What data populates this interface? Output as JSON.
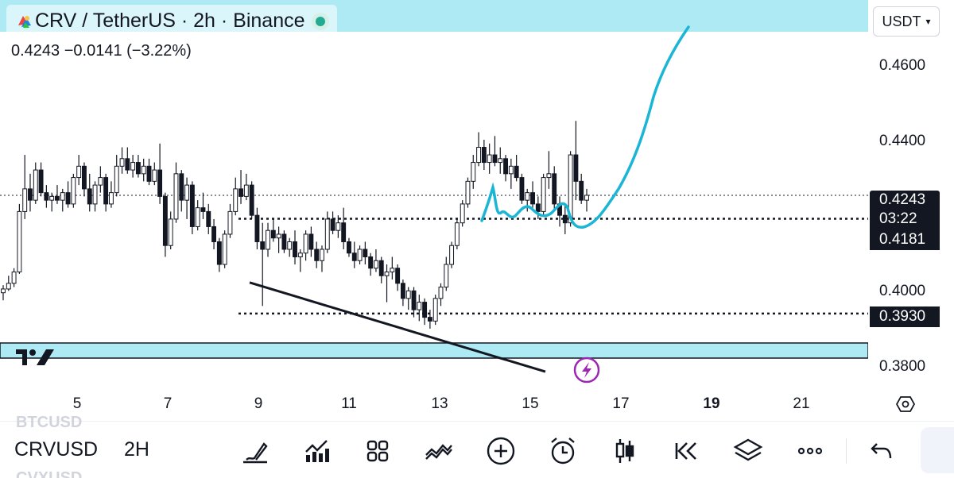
{
  "header": {
    "title": "CRV / TetherUS · 2h · Binance",
    "ohlc": "0.4243  −0.0141 (−3.22%)"
  },
  "currency": {
    "selected": "USDT"
  },
  "price_axis": {
    "ticks": [
      "0.4600",
      "0.4400",
      "0.4000",
      "0.3800"
    ],
    "last_price": "0.4243",
    "countdown": "03:22",
    "level_1": "0.4181",
    "level_2": "0.3930"
  },
  "time_axis": {
    "labels": [
      "5",
      "7",
      "9",
      "11",
      "13",
      "15",
      "17",
      "19",
      "21"
    ]
  },
  "bottom": {
    "ghost_above": "BTCUSD",
    "symbol": "CRVUSD",
    "ghost_below": "CVXUSD",
    "timeframe": "2H"
  },
  "icons": [
    "tradingview-logo-icon",
    "draw-brush-icon",
    "indicators-icon",
    "grid-layout-icon",
    "compare-icon",
    "add-icon",
    "alarm-icon",
    "candles-icon",
    "replay-icon",
    "layers-icon",
    "more-icon",
    "undo-icon",
    "settings-hex-icon",
    "lightning-icon"
  ],
  "colors": {
    "accent": "#aeeaf4",
    "cyan_path": "#1bb5d6",
    "up": "#131722",
    "purple": "#9c27b0"
  },
  "chart_data": {
    "type": "candlestick",
    "title": "CRV / TetherUS · 2h · Binance",
    "ylim": [
      0.373,
      0.476
    ],
    "price_levels": [
      0.4243,
      0.4181,
      0.393
    ],
    "support_zone": [
      0.3812,
      0.3852
    ],
    "x_labels": [
      "5",
      "7",
      "9",
      "11",
      "13",
      "15",
      "17",
      "19",
      "21"
    ],
    "candles": [
      [
        0.3985,
        0.4005,
        0.3965,
        0.3995
      ],
      [
        0.3995,
        0.403,
        0.399,
        0.401
      ],
      [
        0.401,
        0.405,
        0.4,
        0.404
      ],
      [
        0.404,
        0.422,
        0.4035,
        0.42
      ],
      [
        0.42,
        0.435,
        0.418,
        0.426
      ],
      [
        0.426,
        0.43,
        0.42,
        0.423
      ],
      [
        0.423,
        0.433,
        0.422,
        0.431
      ],
      [
        0.431,
        0.433,
        0.424,
        0.425
      ],
      [
        0.425,
        0.427,
        0.421,
        0.423
      ],
      [
        0.423,
        0.425,
        0.42,
        0.424
      ],
      [
        0.424,
        0.427,
        0.422,
        0.423
      ],
      [
        0.423,
        0.426,
        0.42,
        0.425
      ],
      [
        0.425,
        0.428,
        0.421,
        0.422
      ],
      [
        0.422,
        0.43,
        0.421,
        0.429
      ],
      [
        0.429,
        0.435,
        0.427,
        0.432
      ],
      [
        0.432,
        0.433,
        0.424,
        0.426
      ],
      [
        0.426,
        0.43,
        0.42,
        0.422
      ],
      [
        0.422,
        0.428,
        0.42,
        0.427
      ],
      [
        0.427,
        0.432,
        0.425,
        0.429
      ],
      [
        0.429,
        0.43,
        0.42,
        0.422
      ],
      [
        0.422,
        0.428,
        0.421,
        0.425
      ],
      [
        0.425,
        0.435,
        0.424,
        0.432
      ],
      [
        0.432,
        0.437,
        0.43,
        0.434
      ],
      [
        0.434,
        0.437,
        0.43,
        0.431
      ],
      [
        0.431,
        0.435,
        0.429,
        0.433
      ],
      [
        0.433,
        0.435,
        0.429,
        0.43
      ],
      [
        0.43,
        0.434,
        0.428,
        0.432
      ],
      [
        0.432,
        0.434,
        0.427,
        0.428
      ],
      [
        0.428,
        0.433,
        0.427,
        0.431
      ],
      [
        0.431,
        0.438,
        0.422,
        0.424
      ],
      [
        0.424,
        0.425,
        0.408,
        0.411
      ],
      [
        0.411,
        0.42,
        0.41,
        0.418
      ],
      [
        0.418,
        0.433,
        0.417,
        0.43
      ],
      [
        0.43,
        0.431,
        0.42,
        0.423
      ],
      [
        0.423,
        0.429,
        0.418,
        0.427
      ],
      [
        0.427,
        0.428,
        0.414,
        0.416
      ],
      [
        0.416,
        0.423,
        0.415,
        0.421
      ],
      [
        0.421,
        0.425,
        0.418,
        0.42
      ],
      [
        0.42,
        0.422,
        0.414,
        0.416
      ],
      [
        0.416,
        0.418,
        0.41,
        0.412
      ],
      [
        0.412,
        0.413,
        0.404,
        0.406
      ],
      [
        0.406,
        0.415,
        0.405,
        0.414
      ],
      [
        0.414,
        0.422,
        0.413,
        0.42
      ],
      [
        0.42,
        0.429,
        0.419,
        0.426
      ],
      [
        0.426,
        0.431,
        0.422,
        0.424
      ],
      [
        0.424,
        0.43,
        0.423,
        0.427
      ],
      [
        0.427,
        0.428,
        0.418,
        0.419
      ],
      [
        0.419,
        0.421,
        0.41,
        0.412
      ],
      [
        0.412,
        0.417,
        0.395,
        0.41
      ],
      [
        0.41,
        0.417,
        0.408,
        0.415
      ],
      [
        0.415,
        0.418,
        0.412,
        0.413
      ],
      [
        0.413,
        0.416,
        0.409,
        0.414
      ],
      [
        0.414,
        0.415,
        0.409,
        0.41
      ],
      [
        0.41,
        0.413,
        0.408,
        0.412
      ],
      [
        0.412,
        0.415,
        0.406,
        0.408
      ],
      [
        0.408,
        0.41,
        0.404,
        0.409
      ],
      [
        0.409,
        0.415,
        0.407,
        0.414
      ],
      [
        0.414,
        0.416,
        0.408,
        0.41
      ],
      [
        0.41,
        0.412,
        0.405,
        0.407
      ],
      [
        0.407,
        0.411,
        0.404,
        0.41
      ],
      [
        0.41,
        0.42,
        0.409,
        0.418
      ],
      [
        0.418,
        0.42,
        0.414,
        0.415
      ],
      [
        0.415,
        0.419,
        0.413,
        0.417
      ],
      [
        0.417,
        0.421,
        0.41,
        0.412
      ],
      [
        0.412,
        0.413,
        0.408,
        0.409
      ],
      [
        0.409,
        0.412,
        0.405,
        0.407
      ],
      [
        0.407,
        0.411,
        0.406,
        0.41
      ],
      [
        0.41,
        0.412,
        0.406,
        0.408
      ],
      [
        0.408,
        0.409,
        0.403,
        0.405
      ],
      [
        0.405,
        0.41,
        0.404,
        0.407
      ],
      [
        0.407,
        0.408,
        0.401,
        0.403
      ],
      [
        0.403,
        0.406,
        0.396,
        0.404
      ],
      [
        0.404,
        0.408,
        0.402,
        0.405
      ],
      [
        0.405,
        0.406,
        0.399,
        0.401
      ],
      [
        0.401,
        0.402,
        0.395,
        0.397
      ],
      [
        0.397,
        0.4,
        0.394,
        0.399
      ],
      [
        0.399,
        0.4,
        0.392,
        0.394
      ],
      [
        0.394,
        0.398,
        0.391,
        0.396
      ],
      [
        0.396,
        0.397,
        0.39,
        0.392
      ],
      [
        0.392,
        0.394,
        0.389,
        0.391
      ],
      [
        0.391,
        0.398,
        0.39,
        0.397
      ],
      [
        0.397,
        0.401,
        0.395,
        0.4
      ],
      [
        0.4,
        0.408,
        0.399,
        0.406
      ],
      [
        0.406,
        0.412,
        0.405,
        0.411
      ],
      [
        0.411,
        0.418,
        0.41,
        0.417
      ],
      [
        0.417,
        0.423,
        0.416,
        0.422
      ],
      [
        0.422,
        0.429,
        0.421,
        0.428
      ],
      [
        0.428,
        0.435,
        0.426,
        0.433
      ],
      [
        0.433,
        0.441,
        0.432,
        0.437
      ],
      [
        0.437,
        0.439,
        0.431,
        0.433
      ],
      [
        0.433,
        0.438,
        0.43,
        0.435
      ],
      [
        0.435,
        0.44,
        0.432,
        0.433
      ],
      [
        0.433,
        0.437,
        0.43,
        0.434
      ],
      [
        0.434,
        0.435,
        0.428,
        0.43
      ],
      [
        0.43,
        0.434,
        0.426,
        0.432
      ],
      [
        0.432,
        0.435,
        0.428,
        0.429
      ],
      [
        0.429,
        0.43,
        0.422,
        0.423
      ],
      [
        0.423,
        0.426,
        0.42,
        0.425
      ],
      [
        0.425,
        0.428,
        0.421,
        0.422
      ],
      [
        0.422,
        0.424,
        0.418,
        0.42
      ],
      [
        0.42,
        0.43,
        0.419,
        0.429
      ],
      [
        0.429,
        0.436,
        0.426,
        0.43
      ],
      [
        0.43,
        0.432,
        0.42,
        0.422
      ],
      [
        0.422,
        0.424,
        0.416,
        0.419
      ],
      [
        0.419,
        0.422,
        0.414,
        0.417
      ],
      [
        0.417,
        0.436,
        0.416,
        0.435
      ],
      [
        0.435,
        0.444,
        0.423,
        0.428
      ],
      [
        0.428,
        0.43,
        0.422,
        0.423
      ],
      [
        0.423,
        0.426,
        0.42,
        0.4243
      ]
    ]
  }
}
